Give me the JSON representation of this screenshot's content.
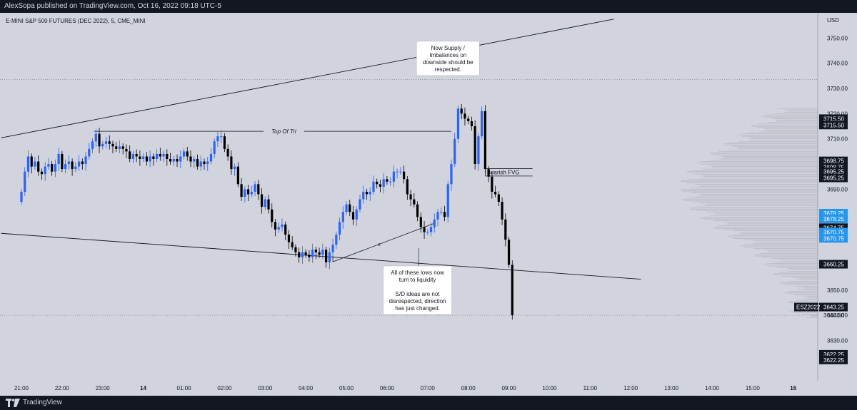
{
  "header": {
    "published": "AlexSopa published on TradingView.com, Oct 16, 2022 09:18 UTC-5"
  },
  "footer": {
    "brand": "TradingView"
  },
  "colors": {
    "background": "#d1d4dc",
    "up": "#2962ff",
    "down": "#000000",
    "frame": "#131722",
    "label_blue": "#2196f3"
  },
  "chart_data": {
    "type": "candlestick",
    "symbol_line": "E-MINI S&P 500 FUTURES (DEC 2022), 5, CME_MINI",
    "currency": "USD",
    "ylim": [
      3614,
      3760
    ],
    "yticks": [
      3630,
      3640,
      3650,
      3660,
      3670,
      3680,
      3690,
      3700,
      3710,
      3720,
      3730,
      3740,
      3750
    ],
    "x_range": [
      -6,
      175
    ],
    "time_labels": [
      {
        "label": "21:00",
        "i": 0,
        "bold": false
      },
      {
        "label": "22:00",
        "i": 12,
        "bold": false
      },
      {
        "label": "23:00",
        "i": 24,
        "bold": false
      },
      {
        "label": "14",
        "i": 36,
        "bold": true
      },
      {
        "label": "01:00",
        "i": 48,
        "bold": false
      },
      {
        "label": "02:00",
        "i": 60,
        "bold": false
      },
      {
        "label": "03:00",
        "i": 72,
        "bold": false
      },
      {
        "label": "04:00",
        "i": 84,
        "bold": false
      },
      {
        "label": "05:00",
        "i": 96,
        "bold": false
      },
      {
        "label": "06:00",
        "i": 108,
        "bold": false
      },
      {
        "label": "07:00",
        "i": 120,
        "bold": false
      },
      {
        "label": "08:00",
        "i": 132,
        "bold": false
      },
      {
        "label": "09:00",
        "i": 144,
        "bold": false
      },
      {
        "label": "10:00",
        "i": 156,
        "bold": false
      },
      {
        "label": "11:00",
        "i": 168,
        "bold": false
      },
      {
        "label": "12:00",
        "i": 180,
        "bold": false
      },
      {
        "label": "13:00",
        "i": 192,
        "bold": false
      },
      {
        "label": "14:00",
        "i": 204,
        "bold": false
      },
      {
        "label": "15:00",
        "i": 216,
        "bold": false
      },
      {
        "label": "16",
        "i": 228,
        "bold": true
      }
    ],
    "closes": [
      3689,
      3697,
      3703,
      3699,
      3701,
      3697,
      3696,
      3699,
      3700,
      3697,
      3700,
      3704,
      3698,
      3700,
      3701,
      3698,
      3699,
      3701,
      3700,
      3703,
      3706,
      3709,
      3712,
      3707,
      3708,
      3709,
      3708,
      3707,
      3706,
      3707,
      3706,
      3705,
      3702,
      3704,
      3703,
      3702,
      3703,
      3701,
      3703,
      3702,
      3704,
      3703,
      3704,
      3702,
      3701,
      3702,
      3701,
      3703,
      3705,
      3703,
      3701,
      3702,
      3699,
      3701,
      3700,
      3701,
      3704,
      3709,
      3711,
      3711,
      3706,
      3703,
      3698,
      3699,
      3692,
      3687,
      3690,
      3688,
      3689,
      3692,
      3688,
      3683,
      3686,
      3682,
      3677,
      3674,
      3675,
      3676,
      3672,
      3669,
      3667,
      3665,
      3663,
      3665,
      3664,
      3663,
      3666,
      3665,
      3664,
      3666,
      3661,
      3665,
      3668,
      3672,
      3677,
      3681,
      3684,
      3681,
      3678,
      3682,
      3686,
      3689,
      3688,
      3689,
      3693,
      3692,
      3691,
      3694,
      3693,
      3693,
      3697,
      3697,
      3697,
      3694,
      3688,
      3686,
      3684,
      3679,
      3675,
      3673,
      3673,
      3675,
      3678,
      3681,
      3681,
      3679,
      3692,
      3700,
      3710,
      3722,
      3720,
      3718,
      3717,
      3715,
      3700,
      3711,
      3721,
      3698,
      3695,
      3689,
      3688,
      3685,
      3678,
      3670,
      3660,
      3640
    ],
    "levels": [
      3715.5,
      3698.75,
      3695.25,
      3678.25,
      3670.75,
      3660.25,
      3643.25,
      3640.0,
      3622.25
    ],
    "axis_labels": [
      {
        "text": "3715.50",
        "y": 3718,
        "style": "dark"
      },
      {
        "text": "3715.50",
        "y": 3715.5,
        "style": "dark"
      },
      {
        "text": "3698.75",
        "y": 3701.25,
        "style": "dark"
      },
      {
        "text": "3698.75",
        "y": 3698.75,
        "style": "dark"
      },
      {
        "text": "3695.25",
        "y": 3697,
        "style": "dark"
      },
      {
        "text": "3695.25",
        "y": 3694.5,
        "style": "dark"
      },
      {
        "text": "3678.25",
        "y": 3680.5,
        "style": "blue"
      },
      {
        "text": "3678.25",
        "y": 3678.25,
        "style": "blue"
      },
      {
        "text": "3674.75",
        "y": 3674.75,
        "style": "dark"
      },
      {
        "text": "3670.75",
        "y": 3673,
        "style": "blue"
      },
      {
        "text": "3670.75",
        "y": 3670.5,
        "style": "blue"
      },
      {
        "text": "3660.25",
        "y": 3660.25,
        "style": "dark"
      },
      {
        "text": "3643.25",
        "y": 3643.25,
        "style": "dark"
      },
      {
        "text": "3640.00",
        "y": 3640.0,
        "style": "plain"
      },
      {
        "text": "3622.25",
        "y": 3624.5,
        "style": "dark"
      },
      {
        "text": "3622.25",
        "y": 3622.25,
        "style": "dark"
      }
    ],
    "symbol_tag": "ESZ2022",
    "upper_trendline": [
      [
        -6,
        3710.4
      ],
      [
        175,
        3757.5
      ]
    ],
    "lower_trendline": [
      [
        -6,
        3672.5
      ],
      [
        183,
        3654.3
      ]
    ],
    "top_of_tri": {
      "label": "Top Of Tri",
      "i1": 21.5,
      "i2": 127,
      "y": 3713
    },
    "bearish_fvg": {
      "label": "Bearish FVG",
      "i1": 137,
      "i2": 151,
      "top": 3698.2,
      "bottom": 3695.25
    },
    "ray": [
      [
        92,
        3661.2
      ],
      [
        122,
        3676.5
      ]
    ],
    "ray_label": "x",
    "dotted_levels": [
      3733.5,
      3640
    ],
    "annotations": [
      {
        "lines": [
          "Now Supply /",
          "Imbalances on",
          "downside should be",
          "respected."
        ],
        "anchor_i": 126,
        "anchor_y": 3734
      },
      {
        "lines": [
          "All of these lows now",
          "turn to liquidity",
          "",
          "S/D ideas are not",
          "disrespected, direction",
          "has just changed."
        ],
        "anchor_i": 117,
        "anchor_y": 3665
      }
    ],
    "volume_profile": {
      "min_x": 940,
      "right": 1145
    }
  }
}
